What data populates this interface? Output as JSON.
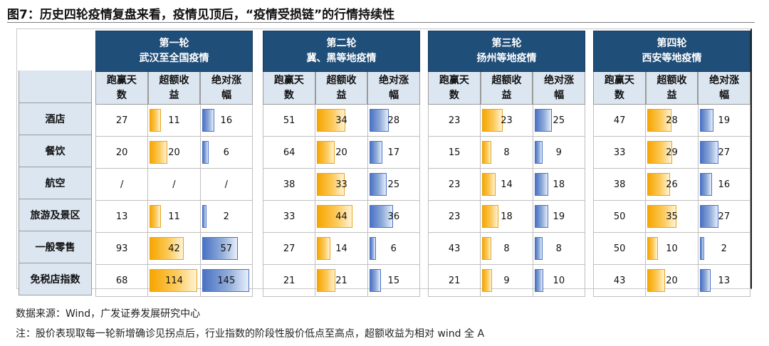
{
  "title": "图7：历史四轮疫情复盘来看，疫情见顶后，“疫情受损链”的行情持续性",
  "chart_data": {
    "type": "table",
    "metrics": [
      "跑赢天数",
      "超额收益",
      "绝对涨幅"
    ],
    "metric_lines": [
      [
        "跑赢天",
        "数"
      ],
      [
        "超额收",
        "益"
      ],
      [
        "绝对涨",
        "幅"
      ]
    ],
    "rows": [
      "酒店",
      "餐饮",
      "航空",
      "旅游及景区",
      "一般零售",
      "免税店指数"
    ],
    "rounds": [
      {
        "title_line1": "第一轮",
        "title_line2": "武汉至全国疫情",
        "values": [
          [
            "27",
            "11",
            "16"
          ],
          [
            "20",
            "20",
            "6"
          ],
          [
            "/",
            "/",
            "/"
          ],
          [
            "13",
            "11",
            "2"
          ],
          [
            "93",
            "42",
            "57"
          ],
          [
            "68",
            "114",
            "145"
          ]
        ]
      },
      {
        "title_line1": "第二轮",
        "title_line2": "冀、黑等地疫情",
        "values": [
          [
            "51",
            "34",
            "28"
          ],
          [
            "64",
            "20",
            "17"
          ],
          [
            "38",
            "33",
            "25"
          ],
          [
            "33",
            "44",
            "36"
          ],
          [
            "27",
            "14",
            "6"
          ],
          [
            "21",
            "21",
            "15"
          ]
        ]
      },
      {
        "title_line1": "第三轮",
        "title_line2": "扬州等地疫情",
        "values": [
          [
            "23",
            "23",
            "25"
          ],
          [
            "15",
            "8",
            "9"
          ],
          [
            "23",
            "14",
            "18"
          ],
          [
            "23",
            "18",
            "19"
          ],
          [
            "43",
            "8",
            "8"
          ],
          [
            "21",
            "9",
            "10"
          ]
        ]
      },
      {
        "title_line1": "第四轮",
        "title_line2": "西安等地疫情",
        "values": [
          [
            "47",
            "28",
            "19"
          ],
          [
            "33",
            "29",
            "27"
          ],
          [
            "38",
            "26",
            "16"
          ],
          [
            "50",
            "35",
            "27"
          ],
          [
            "50",
            "10",
            "2"
          ],
          [
            "43",
            "20",
            "13"
          ]
        ]
      }
    ],
    "bar_colors": {
      "excess": "#f7a600",
      "absolute": "#4a72c4"
    },
    "header_color": "#1f4e79",
    "subheader_color": "#dce6f1"
  },
  "source": "数据来源：Wind，广发证券发展研究中心",
  "note": "注：股价表现取每一轮新增确诊见拐点后，行业指数的阶段性股价低点至高点，超额收益为相对 wind 全 A"
}
